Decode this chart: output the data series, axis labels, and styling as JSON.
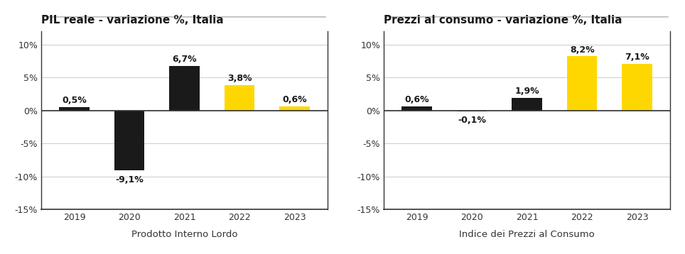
{
  "chart1": {
    "title": "PIL reale - variazione %, Italia",
    "xlabel": "Prodotto Interno Lordo",
    "years": [
      "2019",
      "2020",
      "2021",
      "2022",
      "2023"
    ],
    "values": [
      0.5,
      -9.1,
      6.7,
      3.8,
      0.6
    ],
    "colors": [
      "#1a1a1a",
      "#1a1a1a",
      "#1a1a1a",
      "#FFD700",
      "#FFD700"
    ],
    "labels": [
      "0,5%",
      "-9,1%",
      "6,7%",
      "3,8%",
      "0,6%"
    ],
    "ylim": [
      -15,
      12
    ],
    "yticks": [
      -15,
      -10,
      -5,
      0,
      5,
      10
    ],
    "ytick_labels": [
      "-15%",
      "-10%",
      "-5%",
      "0%",
      "5%",
      "10%"
    ]
  },
  "chart2": {
    "title": "Prezzi al consumo - variazione %, Italia",
    "xlabel": "Indice dei Prezzi al Consumo",
    "years": [
      "2019",
      "2020",
      "2021",
      "2022",
      "2023"
    ],
    "values": [
      0.6,
      -0.1,
      1.9,
      8.2,
      7.1
    ],
    "colors": [
      "#1a1a1a",
      "#1a1a1a",
      "#1a1a1a",
      "#FFD700",
      "#FFD700"
    ],
    "labels": [
      "0,6%",
      "-0,1%",
      "1,9%",
      "8,2%",
      "7,1%"
    ],
    "ylim": [
      -15,
      12
    ],
    "yticks": [
      -15,
      -10,
      -5,
      0,
      5,
      10
    ],
    "ytick_labels": [
      "-15%",
      "-10%",
      "-5%",
      "0%",
      "5%",
      "10%"
    ]
  },
  "bg_color": "#ffffff",
  "bar_width": 0.55,
  "title_fontsize": 11,
  "label_fontsize": 9,
  "tick_fontsize": 9,
  "xlabel_fontsize": 9.5
}
